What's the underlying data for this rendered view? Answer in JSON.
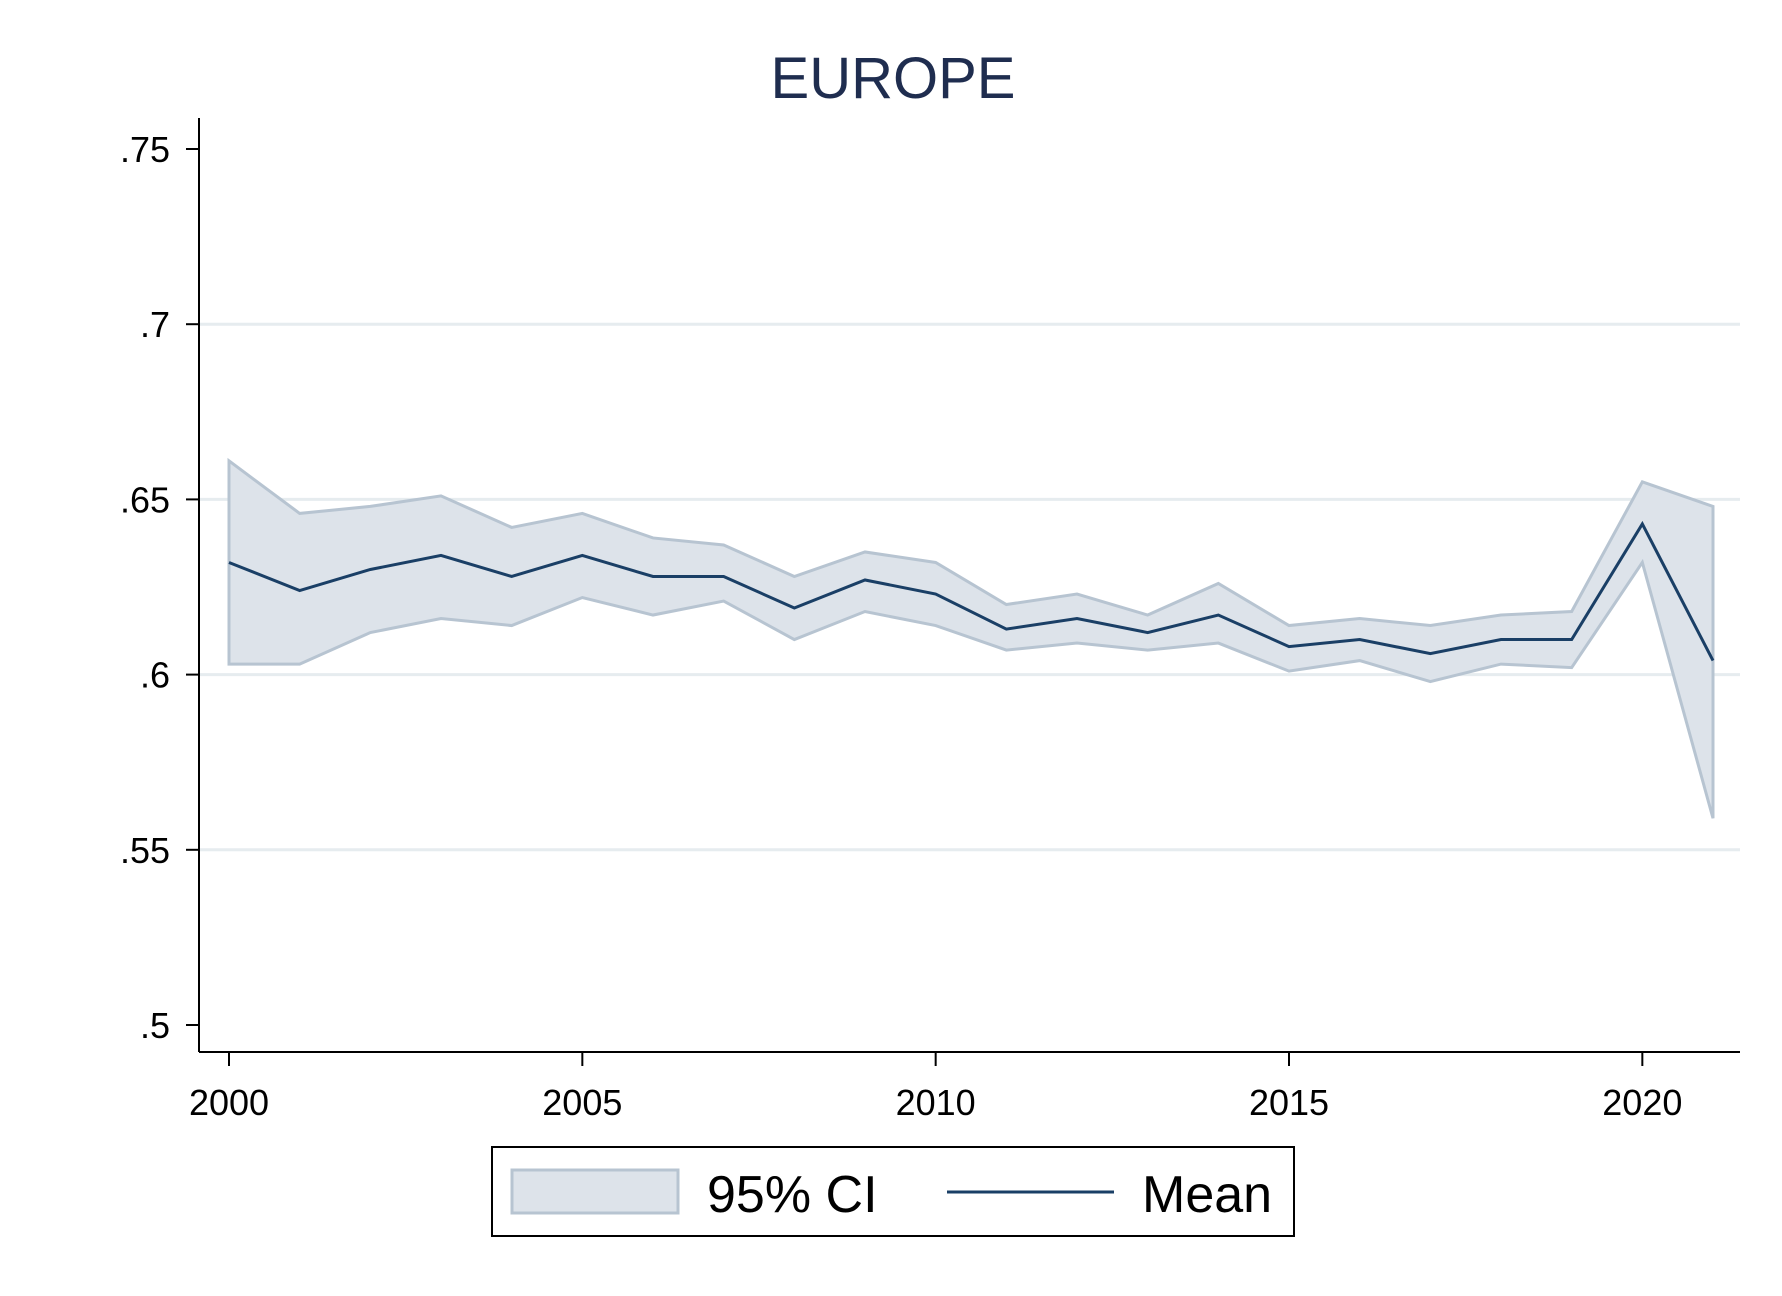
{
  "chart_data": {
    "type": "line",
    "title": "EUROPE",
    "xlabel": "",
    "ylabel": "",
    "xlim": [
      2000,
      2021
    ],
    "ylim": [
      0.5,
      0.75
    ],
    "x_ticks": [
      2000,
      2005,
      2010,
      2015,
      2020
    ],
    "x_tick_labels": [
      "2000",
      "2005",
      "2010",
      "2015",
      "2020"
    ],
    "y_ticks": [
      0.5,
      0.55,
      0.6,
      0.65,
      0.7,
      0.75
    ],
    "y_tick_labels": [
      ".5",
      ".55",
      ".6",
      ".65",
      ".7",
      ".75"
    ],
    "grid": true,
    "legend_position": "bottom",
    "x": [
      2000,
      2001,
      2002,
      2003,
      2004,
      2005,
      2006,
      2007,
      2008,
      2009,
      2010,
      2011,
      2012,
      2013,
      2014,
      2015,
      2016,
      2017,
      2018,
      2019,
      2020,
      2021
    ],
    "series": [
      {
        "name": "95% CI",
        "kind": "band",
        "color": "#dde3ea",
        "edge_color": "#b7c4d1",
        "upper": [
          0.661,
          0.646,
          0.648,
          0.651,
          0.642,
          0.646,
          0.639,
          0.637,
          0.628,
          0.635,
          0.632,
          0.62,
          0.623,
          0.617,
          0.626,
          0.614,
          0.616,
          0.614,
          0.617,
          0.618,
          0.655,
          0.648
        ],
        "lower": [
          0.603,
          0.603,
          0.612,
          0.616,
          0.614,
          0.622,
          0.617,
          0.621,
          0.61,
          0.618,
          0.614,
          0.607,
          0.609,
          0.607,
          0.609,
          0.601,
          0.604,
          0.598,
          0.603,
          0.602,
          0.632,
          0.559
        ]
      },
      {
        "name": "Mean",
        "kind": "line",
        "color": "#1a3f66",
        "values": [
          0.632,
          0.624,
          0.63,
          0.634,
          0.628,
          0.634,
          0.628,
          0.628,
          0.619,
          0.627,
          0.623,
          0.613,
          0.616,
          0.612,
          0.617,
          0.608,
          0.61,
          0.606,
          0.61,
          0.61,
          0.643,
          0.604
        ]
      }
    ]
  }
}
